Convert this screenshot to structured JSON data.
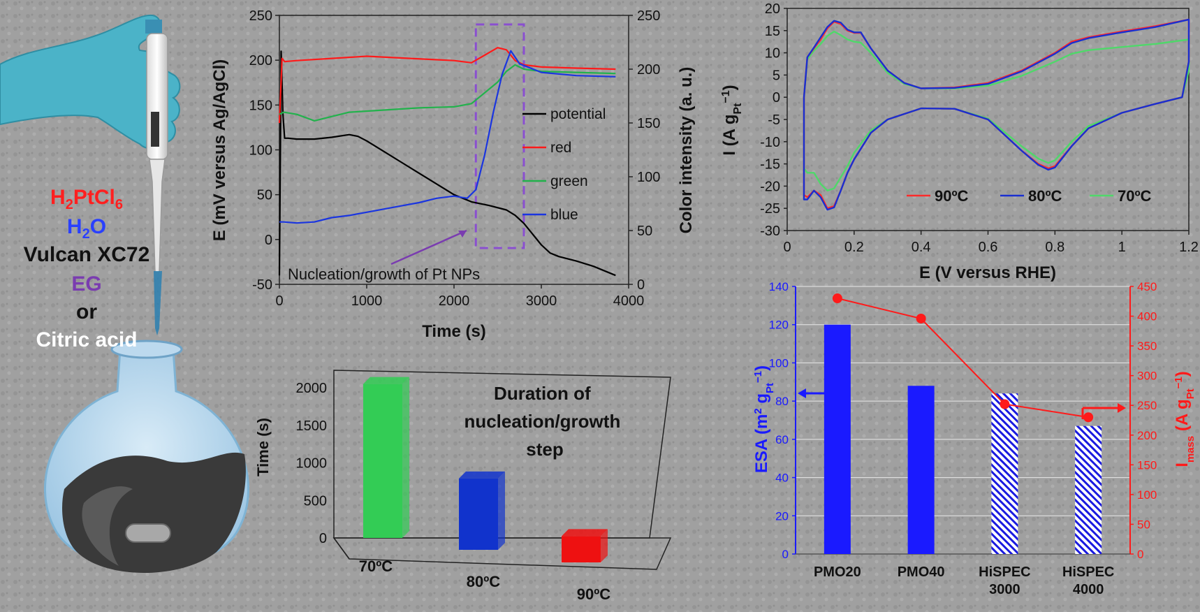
{
  "reagents": {
    "pt_salt": {
      "main": "H",
      "sub1": "2",
      "mid": "PtCl",
      "sub2": "6",
      "color": "#ff2020"
    },
    "water": {
      "main": "H",
      "sub1": "2",
      "mid": "O",
      "color": "#2a40ff"
    },
    "carbon": {
      "text": "Vulcan XC72",
      "color": "#111111"
    },
    "eg": {
      "text": "EG",
      "color": "#7a3cb0"
    },
    "or": {
      "text": "or",
      "color": "#111111"
    },
    "citric": {
      "text": "Citric acid",
      "color": "#ffffff"
    }
  },
  "colors": {
    "potential": "#000000",
    "red": "#ff1a1a",
    "green": "#22b24c",
    "blue": "#1a35e0",
    "cv90": "#ff2b2b",
    "cv80": "#1a2fd0",
    "cv70": "#4fd86a",
    "bar70": "#33cc55",
    "bar80": "#1133cc",
    "bar90": "#ee1111",
    "esa_axis": "#1a1aff",
    "imass_axis": "#ff1a1a",
    "window": "#8a4fd0"
  },
  "chart_data": [
    {
      "type": "line",
      "ylabel": "E (mV versus Ag/AgCl)",
      "y2label": "Color intensity (a. u.)",
      "xlabel": "Time (s)",
      "xlim": [
        0,
        4000
      ],
      "ylim": [
        -50,
        250
      ],
      "y2lim": [
        0,
        250
      ],
      "x_ticks": [
        "0",
        "1000",
        "2000",
        "3000",
        "4000"
      ],
      "y_ticks": [
        "-50",
        "0",
        "50",
        "100",
        "150",
        "200",
        "250"
      ],
      "y2_ticks": [
        "0",
        "50",
        "100",
        "150",
        "200",
        "250"
      ],
      "legend": [
        "potential",
        "red",
        "green",
        "blue"
      ],
      "annotation": "Nucleation/growth of Pt NPs",
      "nucleation_window": [
        2250,
        2800
      ],
      "series": [
        {
          "name": "potential",
          "axis": "left",
          "x": [
            0,
            20,
            40,
            60,
            100,
            200,
            400,
            600,
            800,
            900,
            1000,
            1200,
            1400,
            1600,
            1800,
            2000,
            2200,
            2400,
            2600,
            2700,
            2800,
            2900,
            3000,
            3100,
            3200,
            3400,
            3600,
            3850
          ],
          "y": [
            -40,
            210,
            140,
            113,
            113,
            112,
            112,
            114,
            117,
            115,
            110,
            98,
            86,
            74,
            62,
            50,
            42,
            38,
            33,
            27,
            18,
            6,
            -6,
            -15,
            -19,
            -24,
            -30,
            -40
          ]
        },
        {
          "name": "red",
          "axis": "right",
          "x": [
            0,
            30,
            60,
            200,
            600,
            1000,
            1500,
            2000,
            2200,
            2350,
            2500,
            2600,
            2700,
            2800,
            3000,
            3400,
            3850
          ],
          "y": [
            150,
            210,
            207,
            208,
            210,
            212,
            210,
            208,
            206,
            213,
            220,
            218,
            208,
            204,
            202,
            201,
            200
          ]
        },
        {
          "name": "green",
          "axis": "right",
          "x": [
            0,
            50,
            200,
            400,
            800,
            1200,
            1600,
            2000,
            2200,
            2350,
            2500,
            2600,
            2700,
            2800,
            3000,
            3400,
            3850
          ],
          "y": [
            158,
            160,
            158,
            152,
            160,
            162,
            164,
            165,
            168,
            178,
            188,
            198,
            204,
            200,
            198,
            197,
            196
          ]
        },
        {
          "name": "blue",
          "axis": "right",
          "x": [
            0,
            50,
            200,
            400,
            600,
            800,
            1000,
            1200,
            1400,
            1600,
            1800,
            2000,
            2150,
            2250,
            2350,
            2450,
            2550,
            2650,
            2750,
            3000,
            3400,
            3850
          ],
          "y": [
            58,
            58,
            57,
            58,
            62,
            64,
            67,
            70,
            73,
            76,
            80,
            82,
            80,
            88,
            120,
            160,
            195,
            217,
            205,
            197,
            194,
            193
          ]
        }
      ]
    },
    {
      "type": "bar",
      "title": "Duration of nucleation/growth step",
      "ylabel": "Time (s)",
      "categories": [
        "70ºC",
        "80ºC",
        "90ºC"
      ],
      "values": [
        2050,
        950,
        350
      ],
      "ylim": [
        0,
        2000
      ],
      "y_ticks": [
        "0",
        "500",
        "1000",
        "1500",
        "2000"
      ]
    },
    {
      "type": "line",
      "xlabel": "E (V versus RHE)",
      "ylabel": "I (A gPt−1)",
      "xlim": [
        0,
        1.2
      ],
      "ylim": [
        -30,
        20
      ],
      "x_ticks": [
        "0",
        "0.2",
        "0.4",
        "0.6",
        "0.8",
        "1",
        "1.2"
      ],
      "y_ticks": [
        "20",
        "15",
        "10",
        "5",
        "0",
        "-5",
        "-10",
        "-15",
        "-20",
        "-25",
        "-30"
      ],
      "legend": [
        "90ºC",
        "80ºC",
        "70ºC"
      ],
      "series": [
        {
          "name": "90ºC",
          "x": [
            0.05,
            0.06,
            0.08,
            0.1,
            0.12,
            0.14,
            0.16,
            0.18,
            0.2,
            0.22,
            0.25,
            0.3,
            0.35,
            0.4,
            0.5,
            0.6,
            0.7,
            0.8,
            0.85,
            0.9,
            1.0,
            1.1,
            1.2,
            1.2,
            1.18,
            1.1,
            1.0,
            0.9,
            0.85,
            0.8,
            0.78,
            0.75,
            0.7,
            0.6,
            0.5,
            0.4,
            0.3,
            0.25,
            0.2,
            0.18,
            0.16,
            0.14,
            0.12,
            0.1,
            0.08,
            0.06,
            0.05,
            0.05
          ],
          "y": [
            0,
            9,
            11,
            13,
            15.5,
            17,
            16.5,
            15,
            14.5,
            14.5,
            11,
            6,
            3.2,
            2.0,
            2.2,
            3.2,
            6,
            10,
            12.5,
            13.5,
            14.8,
            16,
            17.5,
            8,
            0,
            -1.5,
            -3.5,
            -7,
            -11,
            -15.5,
            -16,
            -15,
            -12,
            -5,
            -2.6,
            -2.5,
            -5,
            -8,
            -14,
            -17,
            -21,
            -24.5,
            -25,
            -22,
            -21,
            -22.5,
            -22,
            0
          ]
        },
        {
          "name": "80ºC",
          "x": [
            0.05,
            0.06,
            0.08,
            0.1,
            0.12,
            0.14,
            0.16,
            0.18,
            0.2,
            0.22,
            0.25,
            0.3,
            0.35,
            0.4,
            0.5,
            0.6,
            0.7,
            0.8,
            0.85,
            0.9,
            1.0,
            1.1,
            1.2,
            1.2,
            1.18,
            1.1,
            1.0,
            0.9,
            0.85,
            0.8,
            0.78,
            0.75,
            0.7,
            0.6,
            0.5,
            0.4,
            0.3,
            0.25,
            0.2,
            0.18,
            0.16,
            0.14,
            0.12,
            0.1,
            0.08,
            0.06,
            0.05,
            0.05
          ],
          "y": [
            0,
            9,
            11.2,
            13.5,
            15.8,
            17.2,
            16.8,
            15.2,
            14.6,
            14.6,
            11,
            6,
            3.2,
            2.0,
            2.1,
            3.0,
            5.8,
            9.8,
            12.2,
            13.3,
            14.6,
            15.8,
            17.5,
            8,
            0,
            -1.5,
            -3.5,
            -7,
            -11,
            -15.8,
            -16.3,
            -15.2,
            -12,
            -5,
            -2.6,
            -2.5,
            -5,
            -8,
            -14,
            -17,
            -21,
            -24.8,
            -25.3,
            -22.5,
            -21,
            -23,
            -23,
            0
          ]
        },
        {
          "name": "70ºC",
          "x": [
            0.05,
            0.06,
            0.08,
            0.1,
            0.12,
            0.14,
            0.16,
            0.18,
            0.2,
            0.22,
            0.25,
            0.3,
            0.35,
            0.4,
            0.5,
            0.6,
            0.7,
            0.8,
            0.85,
            0.9,
            1.0,
            1.1,
            1.2,
            1.2,
            1.18,
            1.1,
            1.0,
            0.9,
            0.85,
            0.8,
            0.78,
            0.75,
            0.7,
            0.6,
            0.5,
            0.4,
            0.3,
            0.25,
            0.2,
            0.18,
            0.16,
            0.14,
            0.12,
            0.1,
            0.08,
            0.06,
            0.05,
            0.05
          ],
          "y": [
            0,
            8.5,
            10.5,
            12,
            13.8,
            14.8,
            14,
            13,
            12.5,
            12.3,
            10,
            5.5,
            3.0,
            2.0,
            2.0,
            2.6,
            4.8,
            8,
            9.8,
            10.6,
            11.3,
            12,
            13,
            6,
            0,
            -1.5,
            -3.5,
            -6.5,
            -10,
            -14.2,
            -14.8,
            -13.8,
            -11,
            -4.8,
            -2.6,
            -2.5,
            -5,
            -7.5,
            -12.5,
            -15.5,
            -18,
            -20.5,
            -21,
            -19.5,
            -17,
            -17,
            -16,
            0
          ]
        }
      ]
    },
    {
      "type": "bar",
      "ylabel": "ESA (m2 gPt−1)",
      "y2label": "Imass (A gPt−1)",
      "categories": [
        "PMO20",
        "PMO40",
        "HiSPEC 3000",
        "HiSPEC 4000"
      ],
      "ylim": [
        0,
        140
      ],
      "y2lim": [
        0,
        450
      ],
      "y_ticks": [
        "0",
        "20",
        "40",
        "60",
        "80",
        "100",
        "120",
        "140"
      ],
      "y2_ticks": [
        "0",
        "50",
        "100",
        "150",
        "200",
        "250",
        "300",
        "350",
        "400",
        "450"
      ],
      "series": [
        {
          "name": "ESA",
          "type": "bar",
          "axis": "left",
          "values": [
            120,
            88,
            84,
            67
          ],
          "hatched": [
            false,
            false,
            true,
            true
          ]
        },
        {
          "name": "Imass",
          "type": "line",
          "axis": "right",
          "values": [
            430,
            396,
            252,
            230
          ]
        }
      ]
    }
  ]
}
